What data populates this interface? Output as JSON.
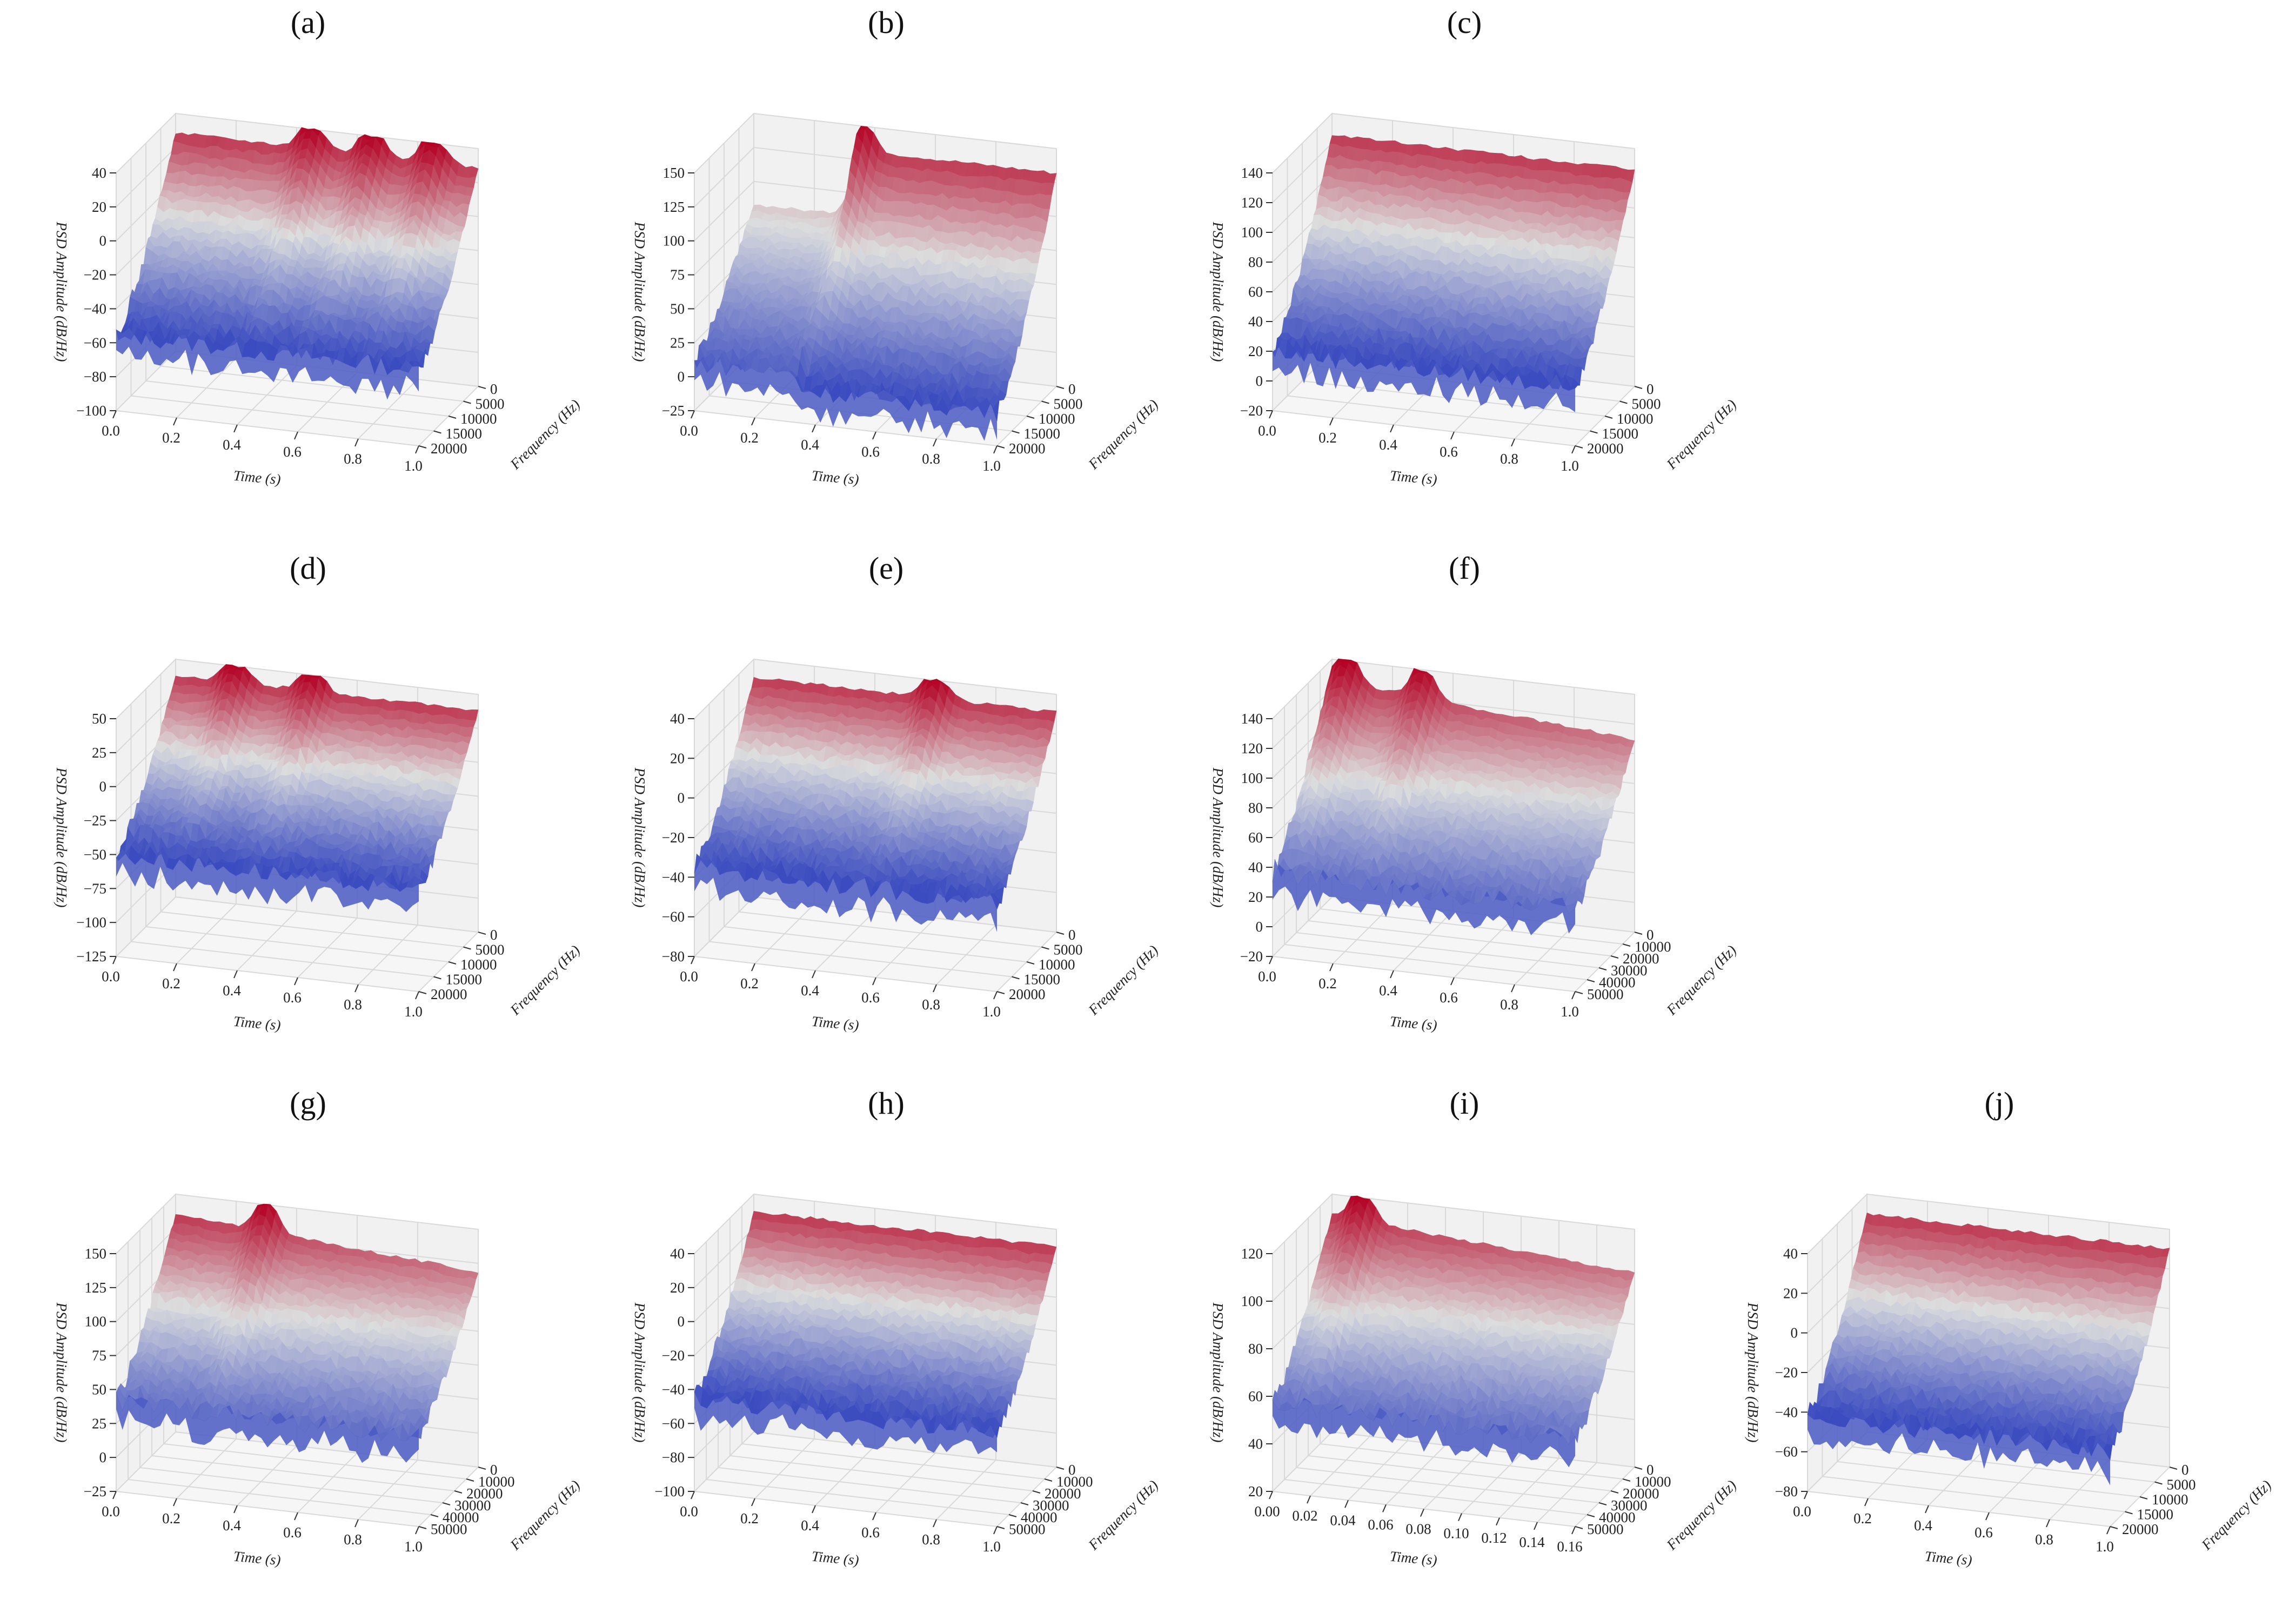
{
  "chart_data": [
    {
      "id": "a",
      "label": "(a)",
      "type": "surface",
      "zlabel": "PSD Amplitude (dB/Hz)",
      "xlabel": "Time (s)",
      "ylabel": "Frequency (Hz)",
      "zticks": [
        "40",
        "20",
        "0",
        "−20",
        "−40",
        "−60",
        "−80",
        "−100"
      ],
      "xticks": [
        "0.0",
        "0.2",
        "0.4",
        "0.6",
        "0.8",
        "1.0"
      ],
      "yticks": [
        "0",
        "5000",
        "10000",
        "15000",
        "20000"
      ],
      "zlim": [
        -100,
        40
      ],
      "surface_range": [
        -55,
        40
      ],
      "peaks": [
        0.45,
        0.65,
        0.85
      ],
      "style": "ridged",
      "color_low": "#3b4cc0",
      "color_mid": "#dcdddd",
      "color_high": "#b40426"
    },
    {
      "id": "b",
      "label": "(b)",
      "type": "surface",
      "zlabel": "PSD Amplitude (dB/Hz)",
      "xlabel": "Time (s)",
      "ylabel": "Frequency (Hz)",
      "zticks": [
        "150",
        "125",
        "100",
        "75",
        "50",
        "25",
        "0",
        "−25"
      ],
      "xticks": [
        "0.0",
        "0.2",
        "0.4",
        "0.6",
        "0.8",
        "1.0"
      ],
      "yticks": [
        "0",
        "5000",
        "10000",
        "15000",
        "20000"
      ],
      "zlim": [
        -25,
        150
      ],
      "surface_range": [
        0,
        150
      ],
      "peaks": [
        0.35
      ],
      "style": "step",
      "color_low": "#3b4cc0",
      "color_mid": "#dcdddd",
      "color_high": "#b40426"
    },
    {
      "id": "c",
      "label": "(c)",
      "type": "surface",
      "zlabel": "PSD Amplitude (dB/Hz)",
      "xlabel": "Time (s)",
      "ylabel": "Frequency (Hz)",
      "zticks": [
        "140",
        "120",
        "100",
        "80",
        "60",
        "40",
        "20",
        "0",
        "−20"
      ],
      "xticks": [
        "0.0",
        "0.2",
        "0.4",
        "0.6",
        "0.8",
        "1.0"
      ],
      "yticks": [
        "0",
        "5000",
        "10000",
        "15000",
        "20000"
      ],
      "zlim": [
        -20,
        140
      ],
      "surface_range": [
        20,
        140
      ],
      "peaks": [],
      "style": "flat",
      "color_low": "#3b4cc0",
      "color_mid": "#dcdddd",
      "color_high": "#b40426"
    },
    {
      "id": "d",
      "label": "(d)",
      "type": "surface",
      "zlabel": "PSD Amplitude (dB/Hz)",
      "xlabel": "Time (s)",
      "ylabel": "Frequency (Hz)",
      "zticks": [
        "50",
        "25",
        "0",
        "−25",
        "−50",
        "−75",
        "−100",
        "−125"
      ],
      "xticks": [
        "0.0",
        "0.2",
        "0.4",
        "0.6",
        "0.8",
        "1.0"
      ],
      "yticks": [
        "0",
        "5000",
        "10000",
        "15000",
        "20000"
      ],
      "zlim": [
        -125,
        50
      ],
      "surface_range": [
        -50,
        50
      ],
      "peaks": [
        0.2,
        0.45
      ],
      "style": "dual",
      "color_low": "#3b4cc0",
      "color_mid": "#dcdddd",
      "color_high": "#b40426"
    },
    {
      "id": "e",
      "label": "(e)",
      "type": "surface",
      "zlabel": "PSD Amplitude (dB/Hz)",
      "xlabel": "Time (s)",
      "ylabel": "Frequency (Hz)",
      "zticks": [
        "40",
        "20",
        "0",
        "−20",
        "−40",
        "−60",
        "−80"
      ],
      "xticks": [
        "0.0",
        "0.2",
        "0.4",
        "0.6",
        "0.8",
        "1.0"
      ],
      "yticks": [
        "0",
        "5000",
        "10000",
        "15000",
        "20000"
      ],
      "zlim": [
        -80,
        40
      ],
      "surface_range": [
        -35,
        40
      ],
      "peaks": [
        0.6
      ],
      "style": "ridged",
      "color_low": "#3b4cc0",
      "color_mid": "#dcdddd",
      "color_high": "#b40426"
    },
    {
      "id": "f",
      "label": "(f)",
      "type": "surface",
      "zlabel": "PSD Amplitude (dB/Hz)",
      "xlabel": "Time (s)",
      "ylabel": "Frequency (Hz)",
      "zticks": [
        "140",
        "120",
        "100",
        "80",
        "60",
        "40",
        "20",
        "0",
        "−20"
      ],
      "xticks": [
        "0.0",
        "0.2",
        "0.4",
        "0.6",
        "0.8",
        "1.0"
      ],
      "yticks": [
        "0",
        "10000",
        "20000",
        "30000",
        "40000",
        "50000"
      ],
      "zlim": [
        -20,
        140
      ],
      "surface_range": [
        20,
        140
      ],
      "peaks": [
        0.05,
        0.3
      ],
      "style": "decay",
      "color_low": "#3b4cc0",
      "color_mid": "#dcdddd",
      "color_high": "#b40426"
    },
    {
      "id": "g",
      "label": "(g)",
      "type": "surface",
      "zlabel": "PSD Amplitude (dB/Hz)",
      "xlabel": "Time (s)",
      "ylabel": "Frequency (Hz)",
      "zticks": [
        "150",
        "125",
        "100",
        "75",
        "50",
        "25",
        "0",
        "−25"
      ],
      "xticks": [
        "0.0",
        "0.2",
        "0.4",
        "0.6",
        "0.8",
        "1.0"
      ],
      "yticks": [
        "0",
        "10000",
        "20000",
        "30000",
        "40000",
        "50000"
      ],
      "zlim": [
        -25,
        150
      ],
      "surface_range": [
        25,
        150
      ],
      "peaks": [
        0.3
      ],
      "style": "decay",
      "color_low": "#3b4cc0",
      "color_mid": "#dcdddd",
      "color_high": "#b40426"
    },
    {
      "id": "h",
      "label": "(h)",
      "type": "surface",
      "zlabel": "PSD Amplitude (dB/Hz)",
      "xlabel": "Time (s)",
      "ylabel": "Frequency (Hz)",
      "zticks": [
        "40",
        "20",
        "0",
        "−20",
        "−40",
        "−60",
        "−80",
        "−100"
      ],
      "xticks": [
        "0.0",
        "0.2",
        "0.4",
        "0.6",
        "0.8",
        "1.0"
      ],
      "yticks": [
        "0",
        "10000",
        "20000",
        "30000",
        "40000",
        "50000"
      ],
      "zlim": [
        -100,
        40
      ],
      "surface_range": [
        -45,
        40
      ],
      "peaks": [],
      "style": "flat",
      "color_low": "#3b4cc0",
      "color_mid": "#dcdddd",
      "color_high": "#b40426"
    },
    {
      "id": "i",
      "label": "(i)",
      "type": "surface",
      "zlabel": "PSD Amplitude (dB/Hz)",
      "xlabel": "Time (s)",
      "ylabel": "Frequency (Hz)",
      "zticks": [
        "120",
        "100",
        "80",
        "60",
        "40",
        "20"
      ],
      "xticks": [
        "0.00",
        "0.02",
        "0.04",
        "0.06",
        "0.08",
        "0.10",
        "0.12",
        "0.14",
        "0.16"
      ],
      "yticks": [
        "0",
        "10000",
        "20000",
        "30000",
        "40000",
        "50000"
      ],
      "zlim": [
        20,
        130
      ],
      "surface_range": [
        50,
        130
      ],
      "peaks": [
        0.1
      ],
      "style": "decay",
      "color_low": "#3b4cc0",
      "color_mid": "#dcdddd",
      "color_high": "#b40426"
    },
    {
      "id": "j",
      "label": "(j)",
      "type": "surface",
      "zlabel": "PSD Amplitude (dB/Hz)",
      "xlabel": "Time (s)",
      "ylabel": "Frequency (Hz)",
      "zticks": [
        "40",
        "20",
        "0",
        "−20",
        "−40",
        "−60",
        "−80"
      ],
      "xticks": [
        "0.0",
        "0.2",
        "0.4",
        "0.6",
        "0.8",
        "1.0"
      ],
      "yticks": [
        "0",
        "5000",
        "10000",
        "15000",
        "20000"
      ],
      "zlim": [
        -80,
        45
      ],
      "surface_range": [
        -40,
        45
      ],
      "peaks": [],
      "style": "flat",
      "color_low": "#3b4cc0",
      "color_mid": "#dcdddd",
      "color_high": "#b40426"
    }
  ]
}
